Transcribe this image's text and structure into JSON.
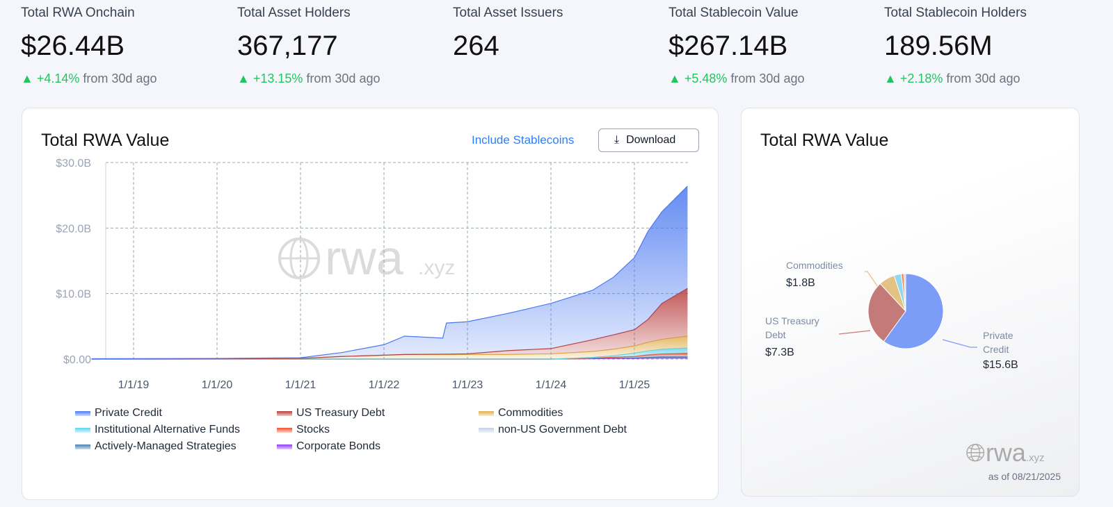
{
  "stats": [
    {
      "label": "Total RWA Onchain",
      "value": "$26.44B",
      "change": "+4.14%",
      "suffix": "from 30d ago"
    },
    {
      "label": "Total Asset Holders",
      "value": "367,177",
      "change": "+13.15%",
      "suffix": "from 30d ago"
    },
    {
      "label": "Total Asset Issuers",
      "value": "264"
    },
    {
      "label": "Total Stablecoin Value",
      "value": "$267.14B",
      "change": "+5.48%",
      "suffix": "from 30d ago"
    },
    {
      "label": "Total Stablecoin Holders",
      "value": "189.56M",
      "change": "+2.18%",
      "suffix": "from 30d ago"
    }
  ],
  "main_card": {
    "title": "Total RWA Value",
    "toggle": "Include Stablecoins",
    "download": "Download",
    "watermark": "rwa",
    "watermark_suffix": ".xyz"
  },
  "side_card": {
    "title": "Total RWA Value",
    "watermark": "rwa",
    "watermark_suffix": ".xyz",
    "as_of": "as of 08/21/2025"
  },
  "chart_data": [
    {
      "type": "area",
      "stacked": true,
      "grid": true,
      "legend": "bottom",
      "ylim": [
        0,
        30
      ],
      "yticks": [
        "$0.00",
        "$10.0B",
        "$20.0B",
        "$30.0B"
      ],
      "xticks": [
        "1/1/19",
        "1/1/20",
        "1/1/21",
        "1/1/22",
        "1/1/23",
        "1/1/24",
        "1/1/25"
      ],
      "x": [
        "2018-07-01",
        "2020-01-01",
        "2021-01-01",
        "2021-07-01",
        "2022-01-01",
        "2022-04-01",
        "2022-09-15",
        "2022-10-01",
        "2023-01-01",
        "2023-07-01",
        "2024-01-01",
        "2024-07-01",
        "2024-10-01",
        "2025-01-01",
        "2025-03-01",
        "2025-05-01",
        "2025-08-21"
      ],
      "series": [
        {
          "name": "Corporate Bonds",
          "color": "#8b3cf0",
          "values": [
            0,
            0,
            0,
            0,
            0,
            0,
            0,
            0,
            0,
            0,
            0,
            0.05,
            0.1,
            0.1,
            0.15,
            0.2,
            0.2
          ]
        },
        {
          "name": "Actively-Managed Strategies",
          "color": "#4a7fb0",
          "values": [
            0,
            0,
            0,
            0,
            0,
            0,
            0,
            0,
            0,
            0,
            0,
            0.05,
            0.1,
            0.1,
            0.15,
            0.2,
            0.2
          ]
        },
        {
          "name": "non-US Government Debt",
          "color": "#c5d0e6",
          "values": [
            0,
            0,
            0,
            0,
            0,
            0,
            0,
            0,
            0,
            0,
            0,
            0.05,
            0.1,
            0.1,
            0.15,
            0.2,
            0.2
          ]
        },
        {
          "name": "Stocks",
          "color": "#f0502a",
          "values": [
            0,
            0,
            0,
            0,
            0,
            0,
            0,
            0,
            0,
            0,
            0,
            0,
            0,
            0.1,
            0.2,
            0.2,
            0.3
          ]
        },
        {
          "name": "Institutional Alternative Funds",
          "color": "#5fd3f0",
          "values": [
            0,
            0,
            0,
            0,
            0,
            0,
            0,
            0,
            0,
            0,
            0,
            0.1,
            0.2,
            0.5,
            0.6,
            0.7,
            0.8
          ]
        },
        {
          "name": "Commodities",
          "color": "#e0b050",
          "values": [
            0.02,
            0.05,
            0.1,
            0.4,
            0.6,
            0.7,
            0.7,
            0.7,
            0.7,
            0.7,
            0.8,
            0.9,
            1.0,
            1.1,
            1.3,
            1.5,
            1.8
          ]
        },
        {
          "name": "US Treasury Debt",
          "color": "#b83a3a",
          "values": [
            0,
            0,
            0,
            0,
            0,
            0,
            0.05,
            0.05,
            0.1,
            0.6,
            0.8,
            1.8,
            2.2,
            2.5,
            3.5,
            5.5,
            7.3
          ]
        },
        {
          "name": "Private Credit",
          "color": "#4a78f0",
          "values": [
            0.03,
            0.05,
            0.1,
            0.6,
            1.6,
            2.8,
            2.45,
            4.75,
            4.9,
            5.7,
            6.9,
            7.55,
            8.8,
            11.0,
            13.45,
            14.0,
            15.6
          ]
        }
      ]
    },
    {
      "type": "pie",
      "slices": [
        {
          "name": "Private Credit",
          "value": 15.6,
          "label": "$15.6B",
          "color": "#7b9cf7"
        },
        {
          "name": "US Treasury Debt",
          "value": 7.3,
          "label": "$7.3B",
          "color": "#c47a78"
        },
        {
          "name": "Commodities",
          "value": 1.8,
          "label": "$1.8B",
          "color": "#e3c283"
        },
        {
          "name": "Institutional Alternative Funds",
          "value": 0.8,
          "color": "#8fd8f0"
        },
        {
          "name": "Stocks",
          "value": 0.3,
          "color": "#f58a6a"
        },
        {
          "name": "non-US Government Debt",
          "value": 0.2,
          "color": "#c8d2e6"
        }
      ],
      "labels": {
        "commodities": "Commodities",
        "treasury_1": "US Treasury",
        "treasury_2": "Debt",
        "private_1": "Private",
        "private_2": "Credit"
      }
    }
  ]
}
